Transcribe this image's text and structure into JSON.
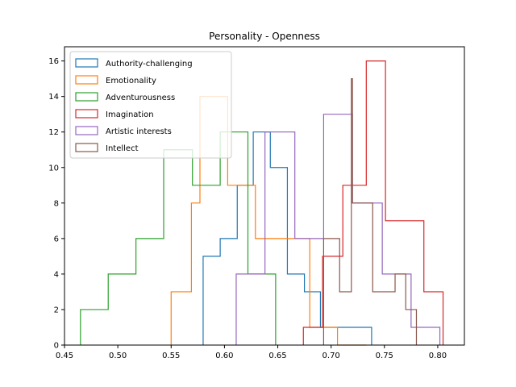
{
  "chart_data": {
    "type": "histogram-step",
    "title": "Personality - Openness",
    "xlabel": "",
    "ylabel": "",
    "xlim": [
      0.45,
      0.825
    ],
    "ylim": [
      0,
      16.8
    ],
    "xticks": [
      "0.45",
      "0.50",
      "0.55",
      "0.60",
      "0.65",
      "0.70",
      "0.75",
      "0.80"
    ],
    "yticks": [
      "0",
      "2",
      "4",
      "6",
      "8",
      "10",
      "12",
      "14",
      "16"
    ],
    "legend_position": "top-left",
    "grid": false,
    "series": [
      {
        "name": "Authority-challenging",
        "color": "#1f77b4",
        "edges": [
          0.58,
          0.596,
          0.612,
          0.627,
          0.643,
          0.659,
          0.675,
          0.69,
          0.706,
          0.722,
          0.738
        ],
        "counts": [
          5,
          6,
          9,
          12,
          10,
          4,
          3,
          1,
          1,
          1
        ]
      },
      {
        "name": "Emotionality",
        "color": "#ff7f0e",
        "edges": [
          0.55,
          0.569,
          0.577,
          0.603,
          0.629,
          0.654,
          0.68,
          0.706,
          0.733
        ],
        "counts": [
          3,
          8,
          14,
          9,
          6,
          6,
          1,
          0
        ]
      },
      {
        "name": "Adventurousness",
        "color": "#2ca02c",
        "edges": [
          0.465,
          0.491,
          0.517,
          0.543,
          0.57,
          0.596,
          0.622,
          0.648
        ],
        "counts": [
          2,
          4,
          6,
          11,
          9,
          12,
          4
        ]
      },
      {
        "name": "Imagination",
        "color": "#d62728",
        "edges": [
          0.674,
          0.692,
          0.711,
          0.733,
          0.751,
          0.787,
          0.805
        ],
        "counts": [
          1,
          5,
          9,
          16,
          7,
          3
        ]
      },
      {
        "name": "Artistic interests",
        "color": "#9467bd",
        "edges": [
          0.611,
          0.638,
          0.666,
          0.693,
          0.72,
          0.748,
          0.775,
          0.802
        ],
        "counts": [
          4,
          12,
          6,
          13,
          8,
          4,
          1
        ]
      },
      {
        "name": "Intellect",
        "color": "#8c564b",
        "edges": [
          0.693,
          0.708,
          0.719,
          0.72,
          0.729,
          0.739,
          0.76,
          0.77,
          0.78
        ],
        "counts": [
          6,
          3,
          15,
          8,
          8,
          3,
          4,
          2
        ]
      }
    ]
  }
}
